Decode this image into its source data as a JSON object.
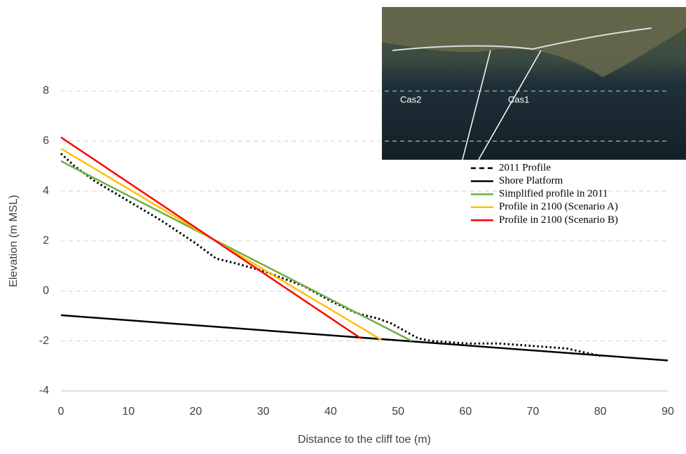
{
  "chart_data": {
    "type": "line",
    "xlabel": "Distance to the cliff toe (m)",
    "ylabel": "Elevation (m MSL)",
    "xlim": [
      0,
      90
    ],
    "xticks": [
      0,
      10,
      20,
      30,
      40,
      50,
      60,
      70,
      80,
      90
    ],
    "ylim": [
      -4,
      8
    ],
    "yticks": [
      -4,
      -2,
      0,
      2,
      4,
      6,
      8
    ],
    "grid": true,
    "legend": "top-right",
    "series": [
      {
        "name": "2011 Profile",
        "color": "#000000",
        "linestyle": "dotted",
        "x": [
          0,
          2,
          5,
          10,
          15,
          20,
          23,
          26,
          30,
          33,
          36,
          40,
          44,
          47,
          49,
          51,
          53,
          55,
          60,
          65,
          70,
          75,
          80
        ],
        "values": [
          5.5,
          5.0,
          4.4,
          3.6,
          2.8,
          1.9,
          1.3,
          1.1,
          0.8,
          0.5,
          0.2,
          -0.4,
          -0.9,
          -1.1,
          -1.3,
          -1.6,
          -1.9,
          -2.0,
          -2.1,
          -2.1,
          -2.2,
          -2.3,
          -2.6
        ]
      },
      {
        "name": "Shore Platform",
        "color": "#000000",
        "linestyle": "solid",
        "x": [
          0,
          90
        ],
        "values": [
          -0.97,
          -2.78
        ]
      },
      {
        "name": "Simplified profile in 2011",
        "color": "#70ad47",
        "linestyle": "solid",
        "x": [
          0,
          52
        ],
        "values": [
          5.2,
          -2.0
        ]
      },
      {
        "name": "Profile in 2100 (Scenario A)",
        "color": "#ffc000",
        "linestyle": "solid",
        "x": [
          0,
          47.5
        ],
        "values": [
          5.7,
          -1.95
        ]
      },
      {
        "name": "Profile in 2100 (Scenario B)",
        "color": "#ff0000",
        "linestyle": "solid",
        "x": [
          0,
          44.5
        ],
        "values": [
          6.15,
          -1.9
        ]
      }
    ]
  },
  "inset": {
    "labels": [
      "Cas2",
      "Cas1"
    ]
  }
}
